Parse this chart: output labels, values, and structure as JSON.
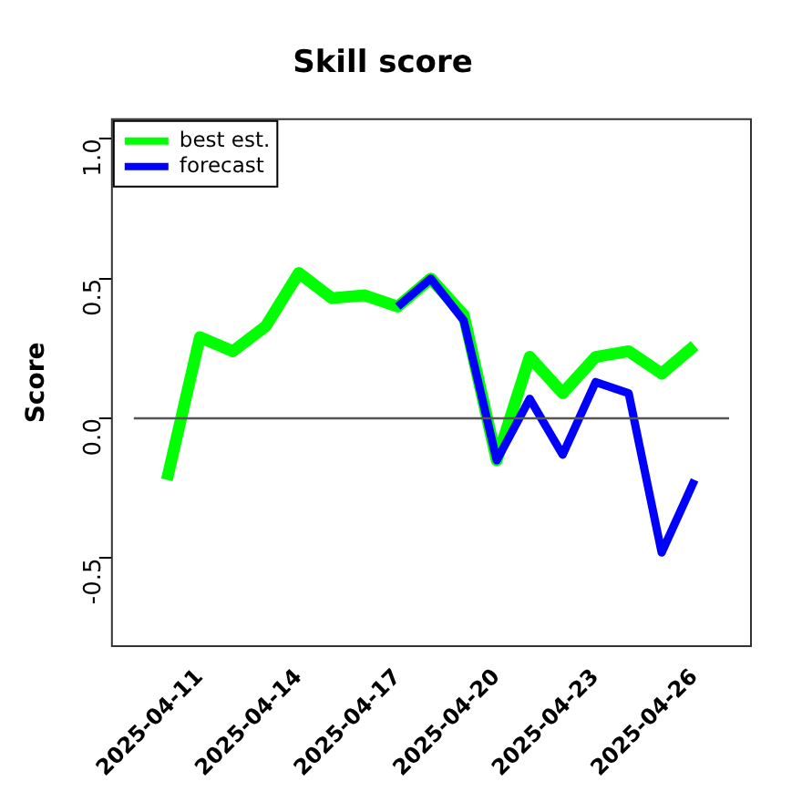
{
  "chart_data": {
    "type": "line",
    "title": "Skill score",
    "ylabel": "Score",
    "xlim": [
      "2025-04-08T08:00",
      "2025-04-27T17:00"
    ],
    "xticks": [
      "2025-04-11",
      "2025-04-14",
      "2025-04-17",
      "2025-04-20",
      "2025-04-23",
      "2025-04-26"
    ],
    "ylim": [
      -0.815,
      1.07
    ],
    "yticks": [
      {
        "value": -0.5,
        "label": "-0.5"
      },
      {
        "value": 0,
        "label": "0.0"
      },
      {
        "value": 0.5,
        "label": "0.5"
      },
      {
        "value": 1,
        "label": "1.0"
      }
    ],
    "series": [
      {
        "name": "best est.",
        "color": "#00ff00",
        "x": [
          "2025-04-10",
          "2025-04-11",
          "2025-04-12",
          "2025-04-13",
          "2025-04-14",
          "2025-04-15",
          "2025-04-16",
          "2025-04-17",
          "2025-04-18",
          "2025-04-19",
          "2025-04-20",
          "2025-04-21",
          "2025-04-22",
          "2025-04-23",
          "2025-04-24",
          "2025-04-25",
          "2025-04-26"
        ],
        "values": [
          -0.22,
          0.29,
          0.24,
          0.33,
          0.52,
          0.43,
          0.44,
          0.4,
          0.5,
          0.37,
          -0.15,
          0.22,
          0.09,
          0.22,
          0.24,
          0.16,
          0.26
        ]
      },
      {
        "name": "forecast",
        "color": "#0000ff",
        "x": [
          "2025-04-17",
          "2025-04-18",
          "2025-04-19",
          "2025-04-20",
          "2025-04-21",
          "2025-04-22",
          "2025-04-23",
          "2025-04-24",
          "2025-04-25",
          "2025-04-26"
        ],
        "values": [
          0.4,
          0.5,
          0.35,
          -0.15,
          0.07,
          -0.13,
          0.13,
          0.09,
          -0.48,
          -0.22
        ]
      }
    ],
    "ref_lines": [
      {
        "axis": "y",
        "value": 0,
        "color": "#555555"
      }
    ],
    "legend": "top left",
    "grid": false,
    "marker": "none",
    "line_style": "solid"
  }
}
